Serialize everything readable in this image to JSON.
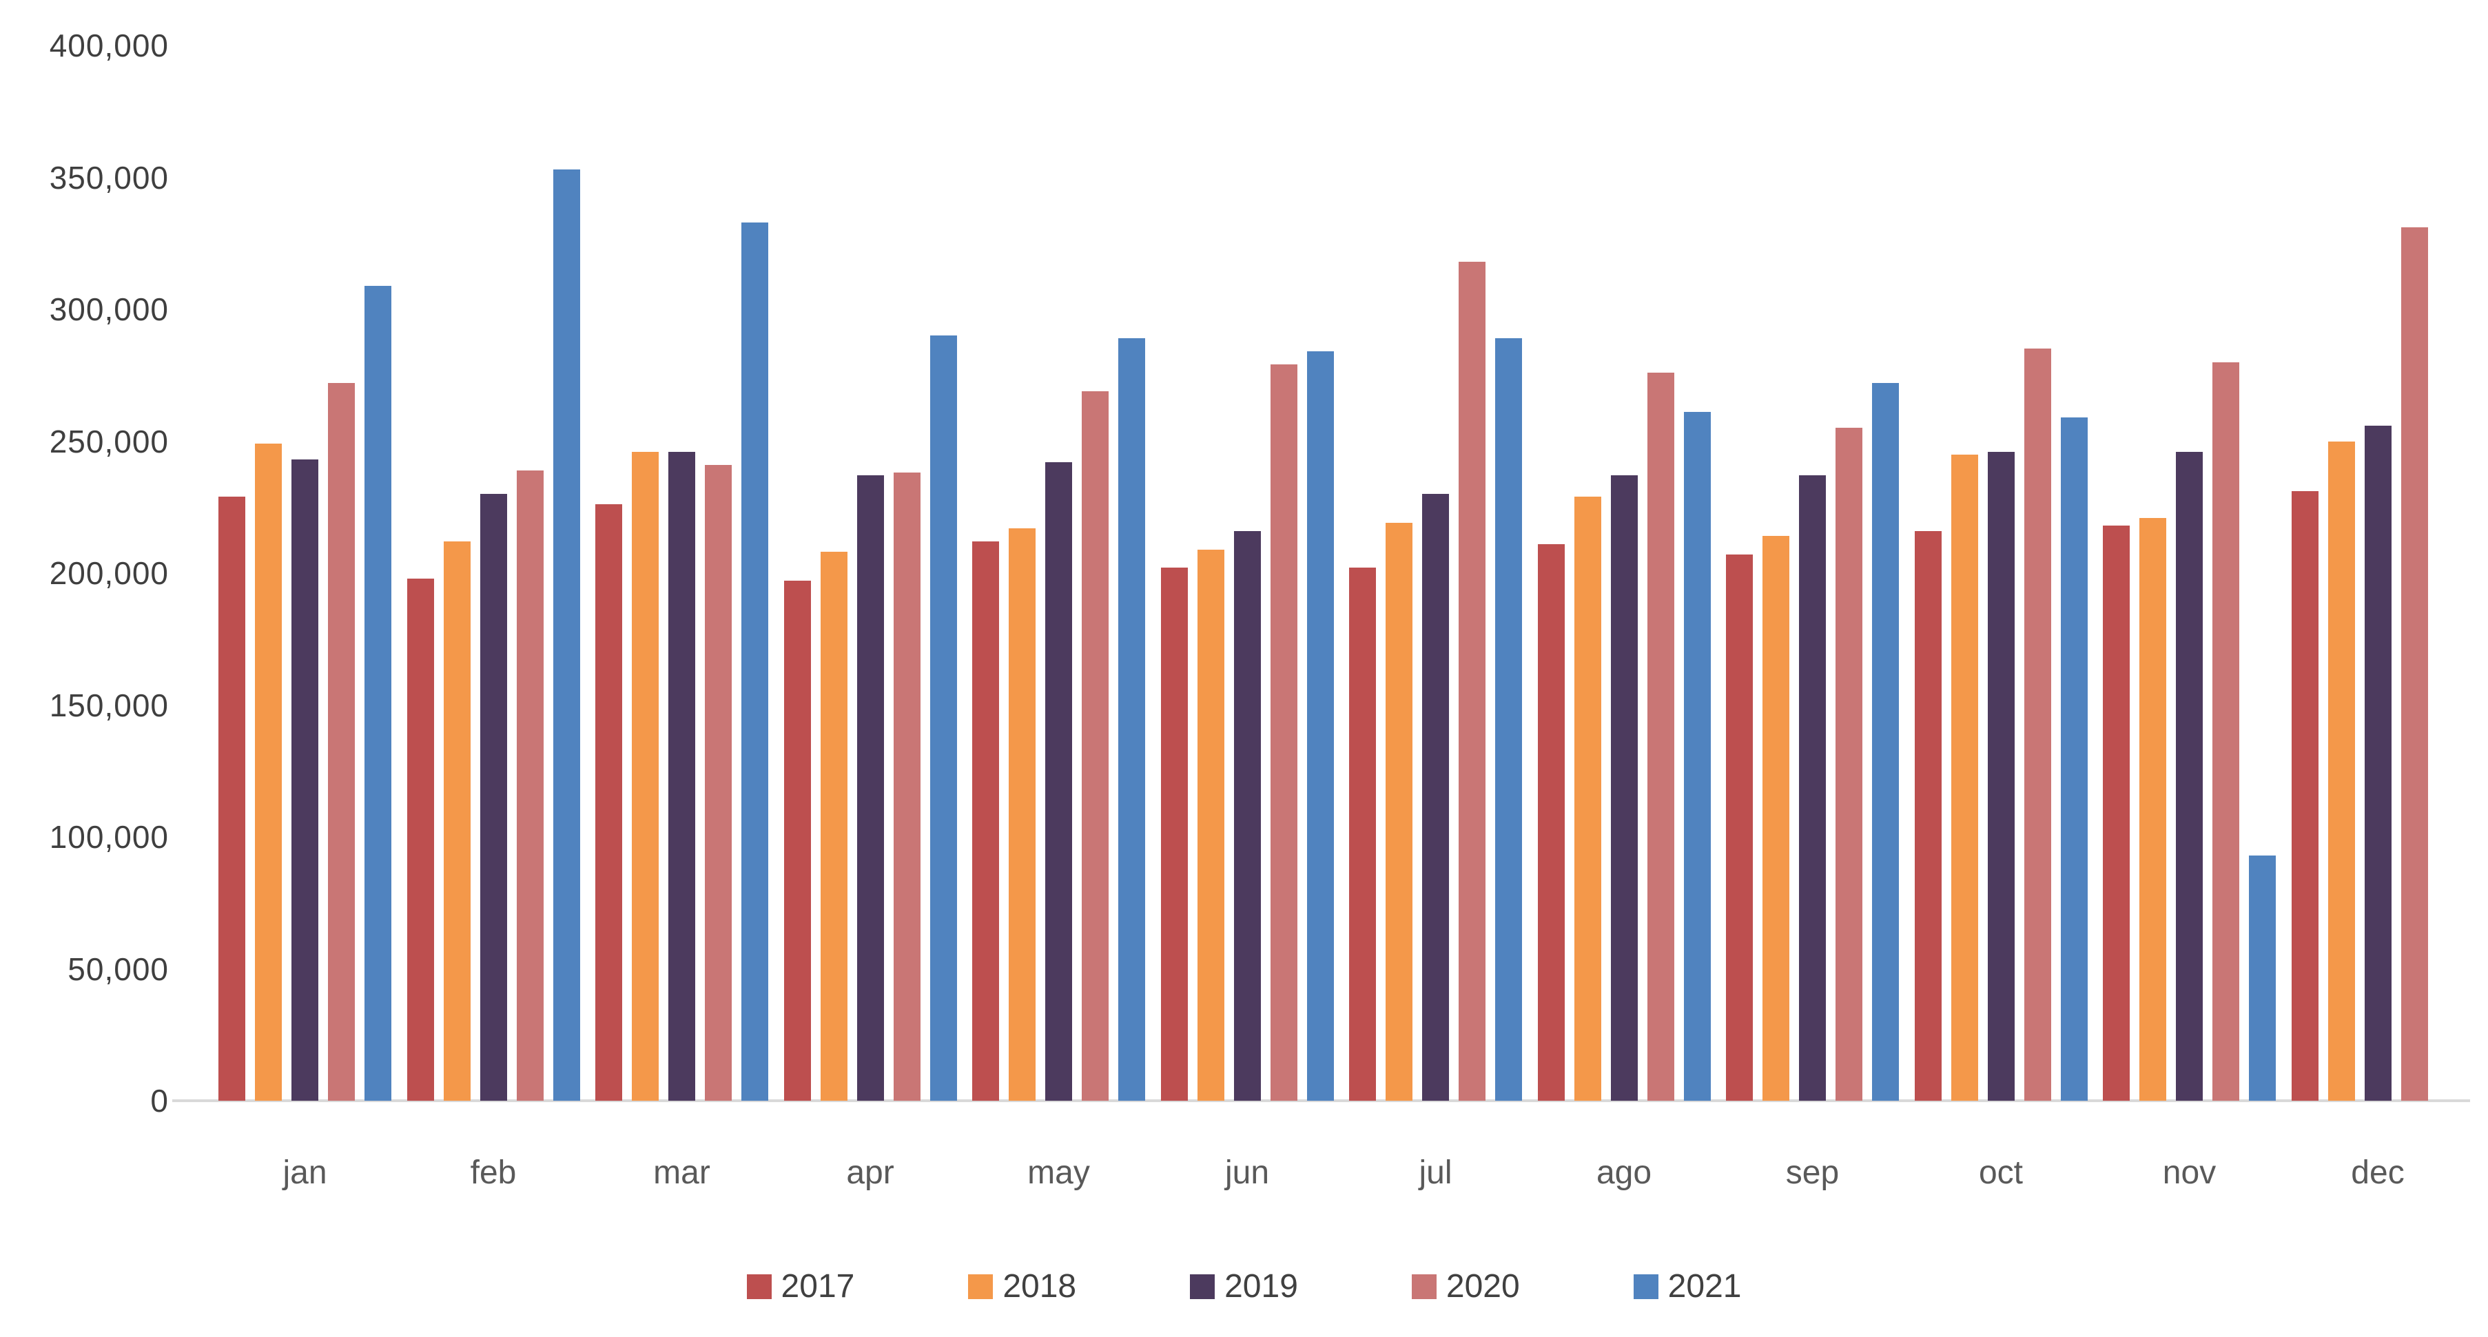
{
  "chart_data": {
    "type": "bar",
    "categories": [
      "jan",
      "feb",
      "mar",
      "apr",
      "may",
      "jun",
      "jul",
      "ago",
      "sep",
      "oct",
      "nov",
      "dec"
    ],
    "series": [
      {
        "name": "2017",
        "color": "#BD4F4F",
        "values": [
          229000,
          198000,
          226000,
          197000,
          212000,
          202000,
          202000,
          211000,
          207000,
          216000,
          218000,
          231000
        ]
      },
      {
        "name": "2018",
        "color": "#F4984A",
        "values": [
          249000,
          212000,
          246000,
          208000,
          217000,
          209000,
          219000,
          229000,
          214000,
          245000,
          221000,
          250000
        ]
      },
      {
        "name": "2019",
        "color": "#4C3A5E",
        "values": [
          243000,
          230000,
          246000,
          237000,
          242000,
          216000,
          230000,
          237000,
          237000,
          246000,
          246000,
          256000
        ]
      },
      {
        "name": "2020",
        "color": "#C97675",
        "values": [
          272000,
          239000,
          241000,
          238000,
          269000,
          279000,
          318000,
          276000,
          255000,
          285000,
          280000,
          331000
        ]
      },
      {
        "name": "2021",
        "color": "#5083BF",
        "values": [
          309000,
          353000,
          333000,
          290000,
          289000,
          284000,
          289000,
          261000,
          272000,
          259000,
          93000,
          null
        ]
      }
    ],
    "ylim": [
      0,
      400000
    ],
    "y_ticks": [
      {
        "label": "0",
        "value": 0
      },
      {
        "label": "50,000",
        "value": 50000
      },
      {
        "label": "100,000",
        "value": 100000
      },
      {
        "label": "150,000",
        "value": 150000
      },
      {
        "label": "200,000",
        "value": 200000
      },
      {
        "label": "250,000",
        "value": 250000
      },
      {
        "label": "300,000",
        "value": 300000
      },
      {
        "label": "350,000",
        "value": 350000
      },
      {
        "label": "400,000",
        "value": 400000
      }
    ],
    "grid": false,
    "legend_position": "bottom"
  },
  "colors": {
    "axis_line": "#D9D9D9",
    "axis_text": "#3F3F3F",
    "month_text": "#595959",
    "background": "#FFFFFF"
  }
}
